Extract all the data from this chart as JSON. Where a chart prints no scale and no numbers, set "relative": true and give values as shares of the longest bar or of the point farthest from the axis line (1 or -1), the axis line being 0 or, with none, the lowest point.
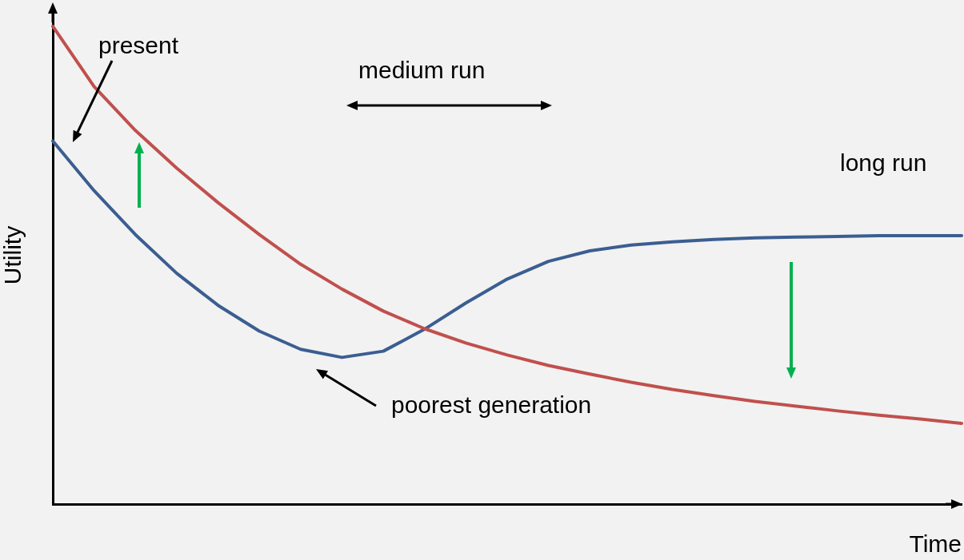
{
  "chart_data": {
    "type": "line",
    "relative": true,
    "xlabel": "Time",
    "ylabel": "Utility",
    "annotations": [
      "present",
      "medium run",
      "long run",
      "poorest generation"
    ],
    "categories": [
      null,
      null,
      null,
      null,
      null,
      null,
      null,
      null,
      null,
      null,
      null,
      null,
      null,
      null,
      null,
      null,
      null,
      null,
      null,
      null,
      null,
      null,
      null
    ],
    "series": [
      {
        "color": "#c0504d",
        "values": [
          1.0,
          0.874,
          0.782,
          0.703,
          0.631,
          0.564,
          0.502,
          0.45,
          0.404,
          0.367,
          0.337,
          0.312,
          0.29,
          0.272,
          0.255,
          0.24,
          0.227,
          0.215,
          0.205,
          0.195,
          0.186,
          0.178,
          0.169
        ]
      },
      {
        "color": "#3b5e91",
        "values": [
          0.76,
          0.656,
          0.564,
          0.483,
          0.416,
          0.362,
          0.324,
          0.307,
          0.32,
          0.366,
          0.421,
          0.471,
          0.508,
          0.53,
          0.542,
          0.549,
          0.554,
          0.557,
          0.559,
          0.56,
          0.562,
          0.562,
          0.562
        ]
      }
    ]
  }
}
